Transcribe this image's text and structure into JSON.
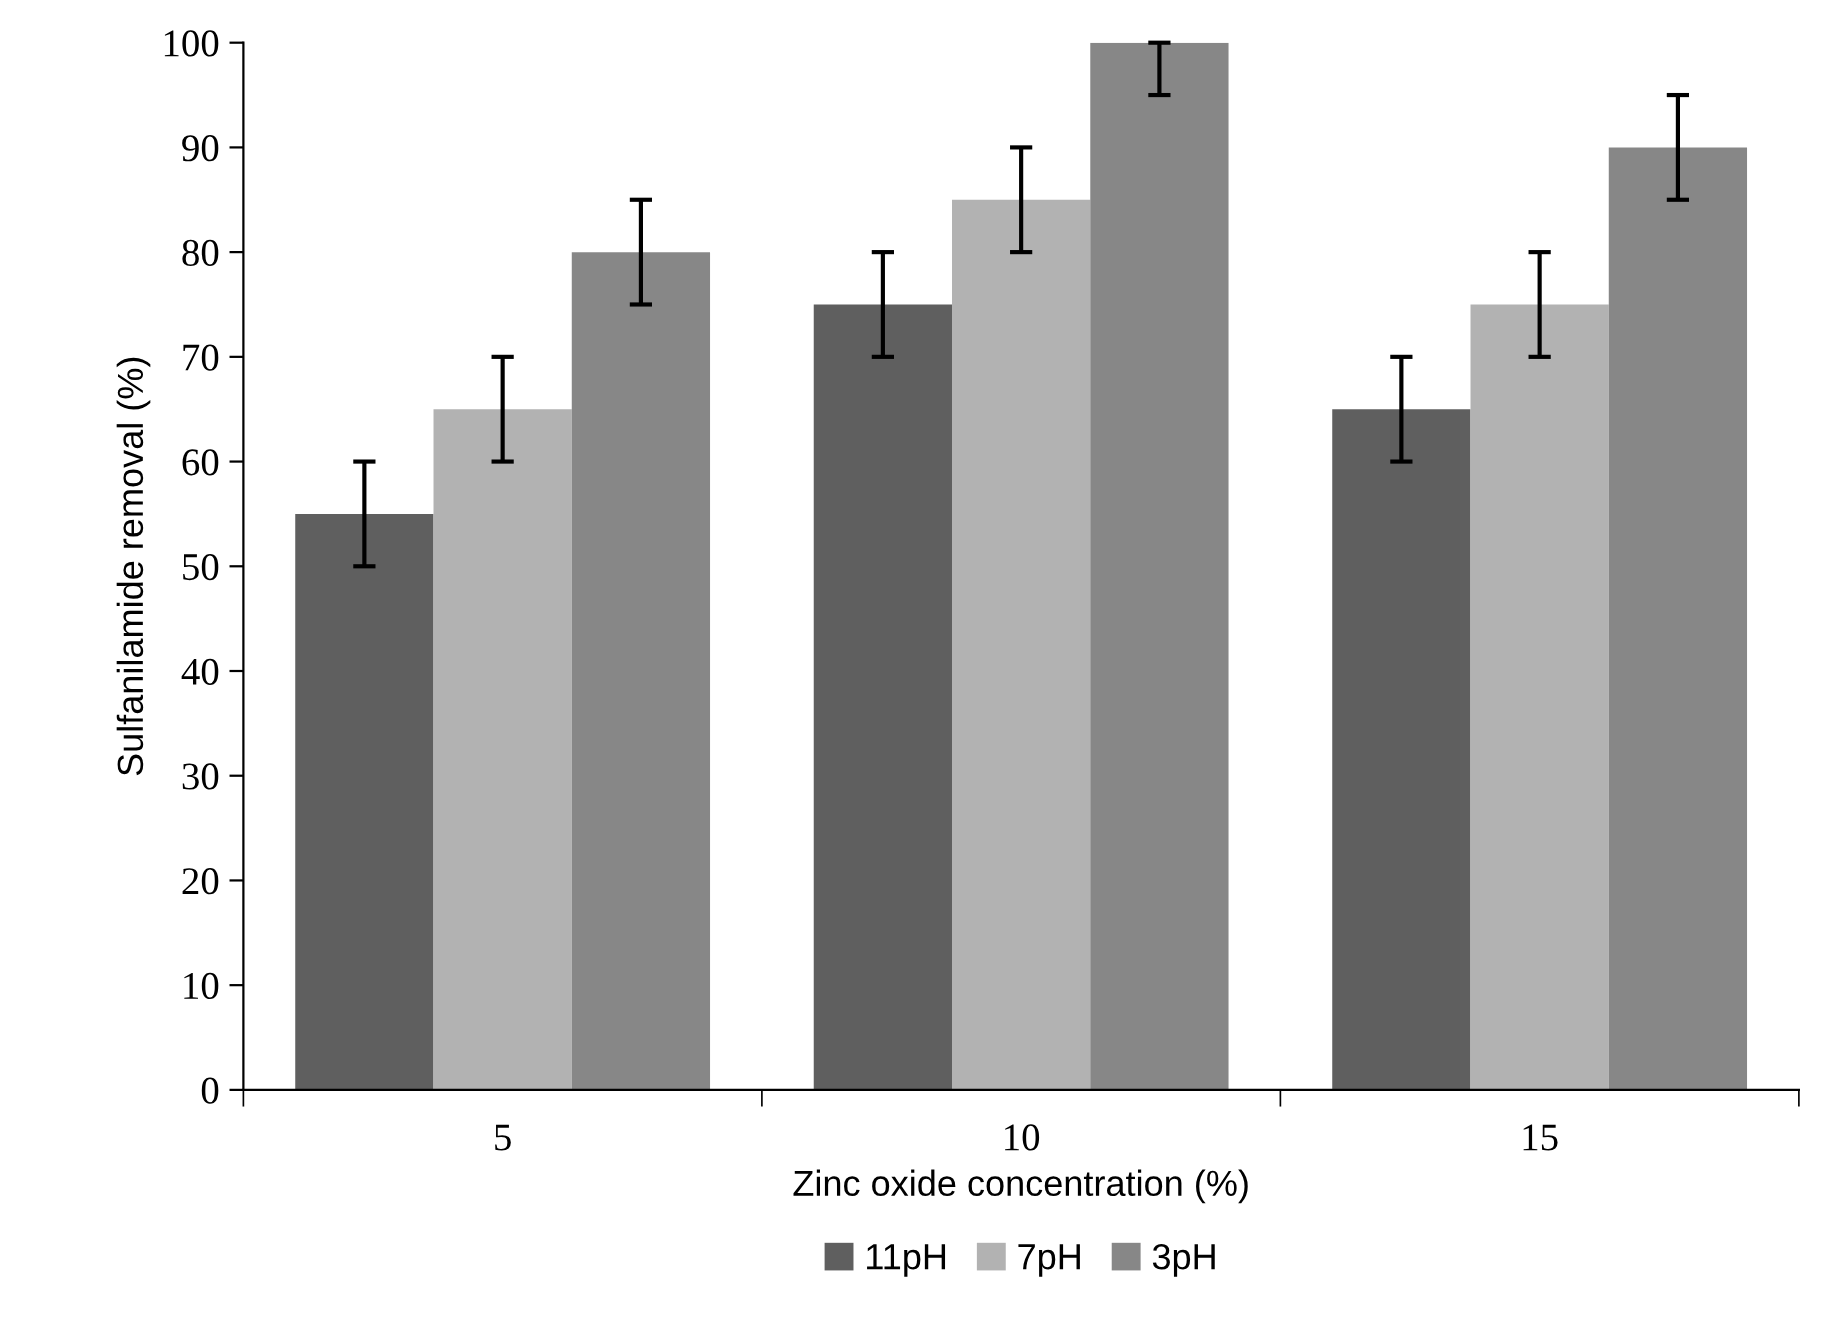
{
  "chart_data": {
    "type": "bar",
    "xlabel": "Zinc oxide concentration (%)",
    "ylabel": "Sulfanilamide removal (%)",
    "categories": [
      "5",
      "10",
      "15"
    ],
    "series": [
      {
        "name": "11pH",
        "color": "#5f5f5f",
        "values": [
          55,
          75,
          65
        ],
        "errors": [
          [
            50,
            60
          ],
          [
            70,
            80
          ],
          [
            60,
            70
          ]
        ]
      },
      {
        "name": "7pH",
        "color": "#b2b2b2",
        "values": [
          65,
          85,
          75
        ],
        "errors": [
          [
            60,
            70
          ],
          [
            80,
            90
          ],
          [
            70,
            80
          ]
        ]
      },
      {
        "name": "3pH",
        "color": "#878787",
        "values": [
          80,
          100,
          90
        ],
        "errors": [
          [
            75,
            85
          ],
          [
            95,
            100
          ],
          [
            85,
            95
          ]
        ]
      }
    ],
    "ylim": [
      0,
      100
    ],
    "yticks": [
      0,
      10,
      20,
      30,
      40,
      50,
      60,
      70,
      80,
      90,
      100
    ],
    "grid": false,
    "legend": "bottom"
  }
}
